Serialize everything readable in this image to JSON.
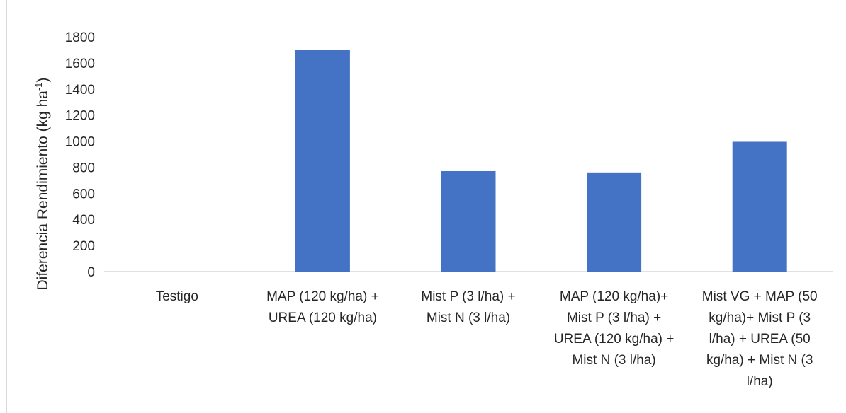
{
  "chart_data": {
    "type": "bar",
    "title": "",
    "xlabel": "",
    "ylabel_main": "Diferencia Rendimiento (kg ha",
    "ylabel_sup": "-1",
    "ylabel_end": ")",
    "ylim": [
      0,
      1800
    ],
    "yticks": [
      0,
      200,
      400,
      600,
      800,
      1000,
      1200,
      1400,
      1600,
      1800
    ],
    "grid": false,
    "legend": "none",
    "bar_color": "#4472c4",
    "categories": [
      [
        "Testigo"
      ],
      [
        "MAP (120 kg/ha) +",
        "UREA (120 kg/ha)"
      ],
      [
        "Mist P (3 l/ha) +",
        "Mist N (3 l/ha)"
      ],
      [
        "MAP (120 kg/ha)+",
        "Mist P (3 l/ha) +",
        "UREA (120 kg/ha) +",
        "Mist N (3 l/ha)"
      ],
      [
        "Mist VG + MAP (50",
        "kg/ha)+ Mist P (3",
        "l/ha) + UREA (50",
        "kg/ha) + Mist N (3",
        "l/ha)"
      ]
    ],
    "values": [
      0,
      1700,
      770,
      760,
      995
    ]
  }
}
